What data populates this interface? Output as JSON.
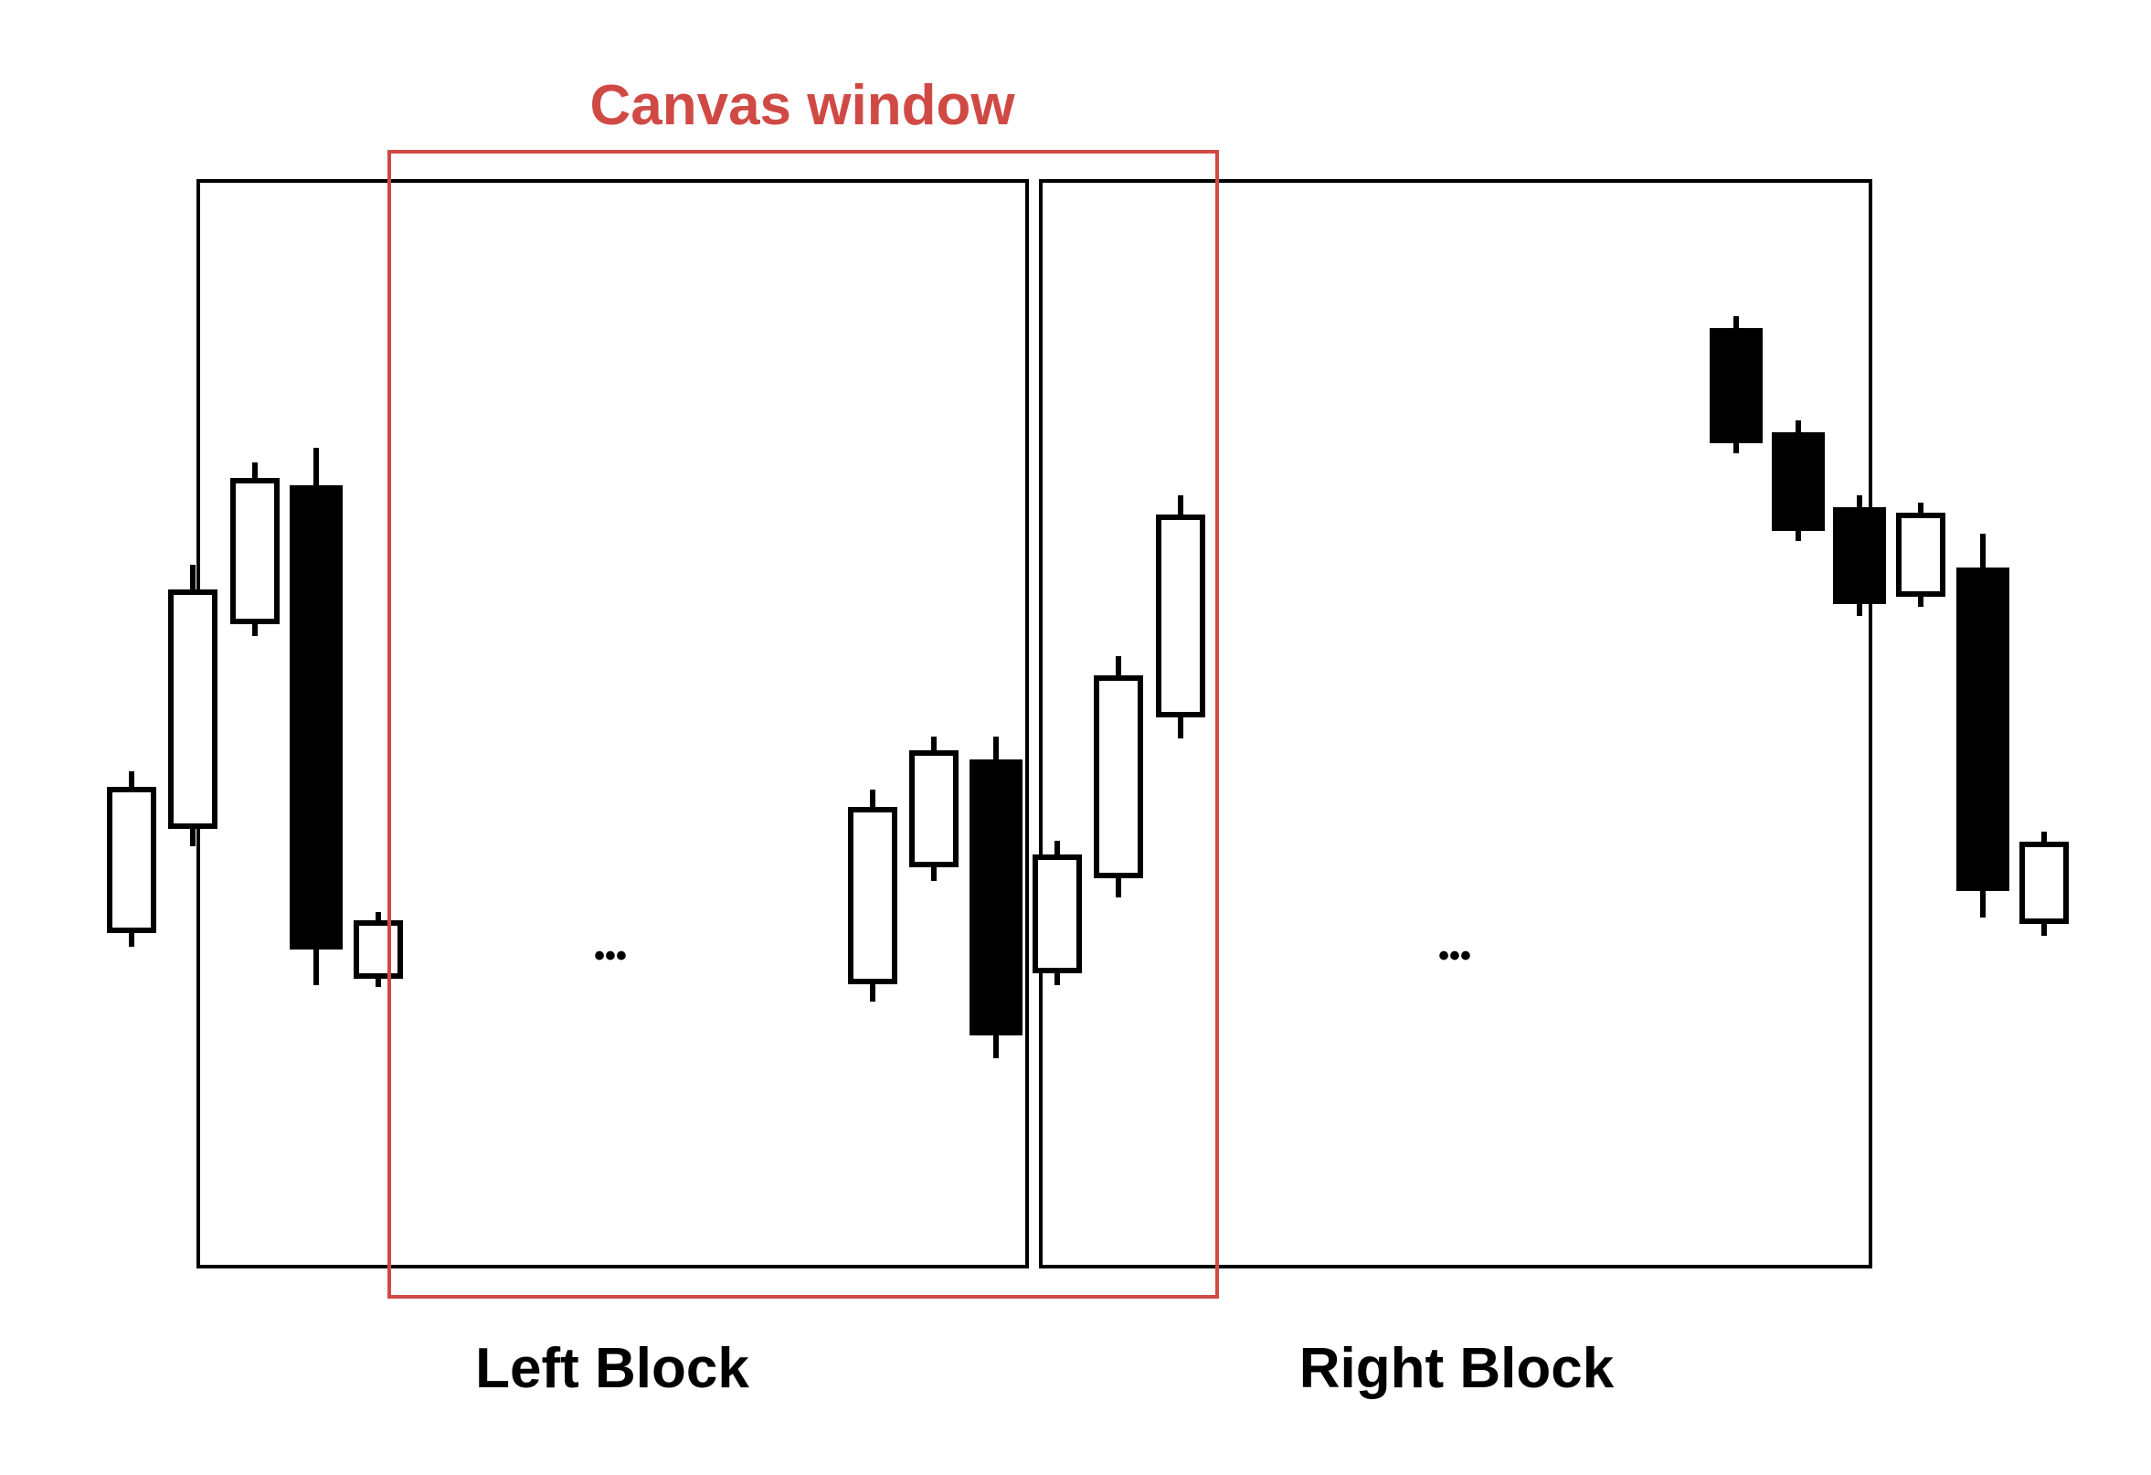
{
  "labels": {
    "canvas_window": "Canvas window",
    "left_block": "Left Block",
    "right_block": "Right Block",
    "ellipsis": "•••"
  },
  "colors": {
    "canvas_window": "#d04a45",
    "block_outline": "#000000",
    "bearish_fill": "#000000",
    "bullish_fill": "#ffffff"
  },
  "candles": [
    {
      "group": "left-outside",
      "type": "bullish"
    },
    {
      "group": "left-outside",
      "type": "bullish"
    },
    {
      "group": "left-outside",
      "type": "bullish"
    },
    {
      "group": "left-outside",
      "type": "bearish"
    },
    {
      "group": "left-outside",
      "type": "bullish"
    },
    {
      "group": "left-inside",
      "type": "bullish"
    },
    {
      "group": "left-inside",
      "type": "bullish"
    },
    {
      "group": "left-inside",
      "type": "bearish"
    },
    {
      "group": "right-inside",
      "type": "bullish"
    },
    {
      "group": "right-inside",
      "type": "bullish"
    },
    {
      "group": "right-inside",
      "type": "bullish"
    },
    {
      "group": "right-end",
      "type": "bearish"
    },
    {
      "group": "right-end",
      "type": "bearish"
    },
    {
      "group": "right-end",
      "type": "bearish"
    },
    {
      "group": "right-end",
      "type": "bullish"
    },
    {
      "group": "right-end",
      "type": "bearish"
    },
    {
      "group": "right-end",
      "type": "bullish"
    }
  ]
}
